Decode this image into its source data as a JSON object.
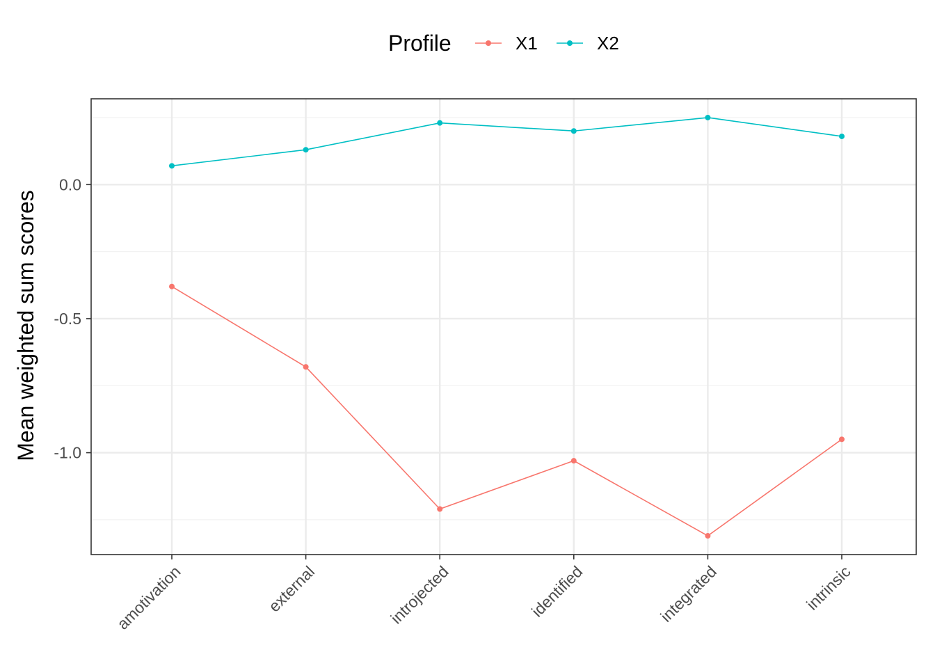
{
  "chart_data": {
    "type": "line",
    "title": "",
    "xlabel": "",
    "ylabel": "Mean weighted sum scores",
    "categories": [
      "amotivation",
      "external",
      "introjected",
      "identified",
      "integrated",
      "intrinsic"
    ],
    "ylim": [
      -1.38,
      0.32
    ],
    "yticks": [
      {
        "value": 0.0,
        "label": "0.0"
      },
      {
        "value": -0.5,
        "label": "-0.5"
      },
      {
        "value": -1.0,
        "label": "-1.0"
      }
    ],
    "grid": true,
    "legend": {
      "title": "Profile",
      "position": "top"
    },
    "series": [
      {
        "name": "X1",
        "color": "#F8766D",
        "values": [
          -0.38,
          -0.68,
          -1.21,
          -1.03,
          -1.31,
          -0.95
        ]
      },
      {
        "name": "X2",
        "color": "#00BFC4",
        "values": [
          0.07,
          0.13,
          0.23,
          0.2,
          0.25,
          0.18
        ]
      }
    ]
  }
}
